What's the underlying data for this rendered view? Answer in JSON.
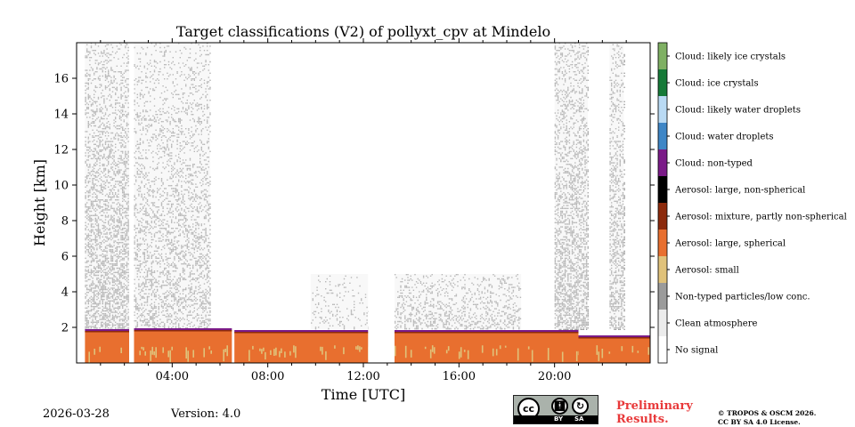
{
  "chart_data": {
    "type": "heatmap",
    "title": "Target classifications (V2) of pollyxt_cpv at Mindelo",
    "xlabel": "Time [UTC]",
    "ylabel": "Height [km]",
    "xlim": [
      0,
      24
    ],
    "ylim": [
      0,
      18
    ],
    "x_ticks": [
      4,
      8,
      12,
      16,
      20
    ],
    "x_tick_labels": [
      "04:00",
      "08:00",
      "12:00",
      "16:00",
      "20:00"
    ],
    "y_ticks": [
      2,
      4,
      6,
      8,
      10,
      12,
      14,
      16
    ],
    "y_tick_labels": [
      "2",
      "4",
      "6",
      "8",
      "10",
      "12",
      "14",
      "16"
    ],
    "classes": [
      {
        "label": "Cloud: likely ice crystals",
        "color": "#7fb063"
      },
      {
        "label": "Cloud: ice crystals",
        "color": "#167a38"
      },
      {
        "label": "Cloud: likely water droplets",
        "color": "#b9daf4"
      },
      {
        "label": "Cloud: water droplets",
        "color": "#3e86c6"
      },
      {
        "label": "Cloud: non-typed",
        "color": "#7b1b88"
      },
      {
        "label": "Aerosol: large, non-spherical",
        "color": "#000000"
      },
      {
        "label": "Aerosol: mixture, partly non-spherical",
        "color": "#8c2a0c"
      },
      {
        "label": "Aerosol: large, spherical",
        "color": "#e86f2f"
      },
      {
        "label": "Aerosol: small",
        "color": "#e0c27a"
      },
      {
        "label": "Non-typed particles/low conc.",
        "color": "#9b9b9b"
      },
      {
        "label": "Clean atmosphere",
        "color": "#ececec"
      },
      {
        "label": "No signal",
        "color": "#ffffff"
      }
    ],
    "data_gaps_utc": [
      [
        2.2,
        2.4
      ],
      [
        6.5,
        6.6
      ],
      [
        12.2,
        13.3
      ]
    ],
    "boundary_layer_top_km": [
      {
        "from": 0.35,
        "to": 2.2,
        "top": 1.8
      },
      {
        "from": 2.4,
        "to": 6.5,
        "top": 1.85
      },
      {
        "from": 6.6,
        "to": 12.2,
        "top": 1.75
      },
      {
        "from": 13.3,
        "to": 21.0,
        "top": 1.75
      },
      {
        "from": 21.0,
        "to": 24.0,
        "top": 1.45
      }
    ],
    "noise_regions_utc": [
      {
        "from": 0.35,
        "to": 2.2,
        "top": 18.0,
        "density": 0.55
      },
      {
        "from": 2.4,
        "to": 5.6,
        "top": 18.0,
        "density": 0.35
      },
      {
        "from": 9.8,
        "to": 12.2,
        "top": 5.0,
        "density": 0.15
      },
      {
        "from": 13.3,
        "to": 18.6,
        "top": 5.0,
        "density": 0.35
      },
      {
        "from": 20.0,
        "to": 21.4,
        "top": 18.0,
        "density": 0.55
      },
      {
        "from": 22.3,
        "to": 22.9,
        "top": 18.0,
        "density": 0.5
      }
    ]
  },
  "footer": {
    "date": "2026-03-28",
    "version": "Version: 4.0",
    "preliminary_line1": "Preliminary",
    "preliminary_line2": "Results.",
    "copyright_line1": "© TROPOS & OSCM 2026.",
    "copyright_line2": "CC BY SA 4.0 License."
  },
  "license_badge": {
    "cc": "cc",
    "by": "BY",
    "sa": "SA"
  }
}
